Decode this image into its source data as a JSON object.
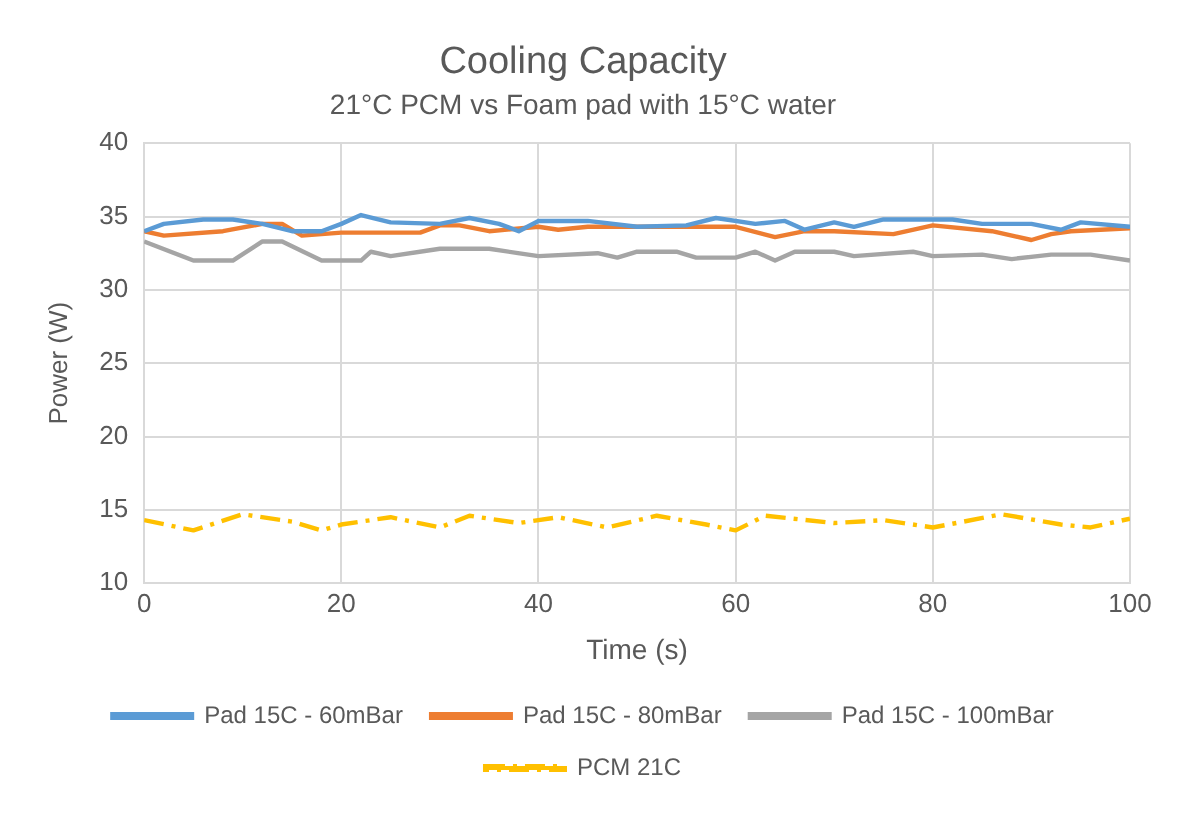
{
  "chart_data": {
    "type": "line",
    "title": "Cooling Capacity",
    "subtitle": "21°C PCM vs Foam pad with 15°C water",
    "xlabel": "Time (s)",
    "ylabel": "Power (W)",
    "xlim": [
      0,
      100
    ],
    "xticks": [
      0,
      20,
      40,
      60,
      80,
      100
    ],
    "ylim": [
      10,
      40
    ],
    "yticks": [
      10,
      15,
      20,
      25,
      30,
      35,
      40
    ],
    "grid": true,
    "legend": "bottom",
    "marker": "none",
    "series": [
      {
        "name": "Pad 15C - 60mBar",
        "color": "#5b9bd5",
        "line_style": "solid",
        "x": [
          0,
          2,
          6,
          9,
          12,
          15,
          18,
          20,
          22,
          25,
          30,
          33,
          36,
          38,
          40,
          45,
          50,
          55,
          58,
          62,
          65,
          67,
          70,
          72,
          75,
          82,
          85,
          90,
          93,
          95,
          100
        ],
        "values": [
          34,
          34.5,
          34.8,
          34.8,
          34.5,
          34,
          34,
          34.5,
          35.1,
          34.6,
          34.5,
          34.9,
          34.5,
          34,
          34.7,
          34.7,
          34.3,
          34.4,
          34.9,
          34.5,
          34.7,
          34.1,
          34.6,
          34.3,
          34.8,
          34.8,
          34.5,
          34.5,
          34.1,
          34.6,
          34.3
        ]
      },
      {
        "name": "Pad 15C - 80mBar",
        "color": "#ed7d31",
        "line_style": "solid",
        "x": [
          0,
          2,
          8,
          12,
          14,
          16,
          20,
          28,
          30,
          32,
          35,
          40,
          42,
          45,
          50,
          55,
          60,
          64,
          67,
          70,
          76,
          80,
          86,
          90,
          92,
          94,
          100
        ],
        "values": [
          34,
          33.7,
          34,
          34.5,
          34.5,
          33.7,
          33.9,
          33.9,
          34.4,
          34.4,
          34,
          34.3,
          34.1,
          34.3,
          34.3,
          34.3,
          34.3,
          33.6,
          34,
          34,
          33.8,
          34.4,
          34,
          33.4,
          33.8,
          34,
          34.2
        ]
      },
      {
        "name": "Pad 15C - 100mBar",
        "color": "#a5a5a5",
        "line_style": "solid",
        "x": [
          0,
          5,
          9,
          12,
          14,
          18,
          22,
          23,
          25,
          30,
          35,
          40,
          46,
          48,
          50,
          54,
          56,
          60,
          62,
          64,
          66,
          70,
          72,
          78,
          80,
          85,
          88,
          92,
          96,
          100
        ],
        "values": [
          33.3,
          32,
          32,
          33.3,
          33.3,
          32,
          32,
          32.6,
          32.3,
          32.8,
          32.8,
          32.3,
          32.5,
          32.2,
          32.6,
          32.6,
          32.2,
          32.2,
          32.6,
          32,
          32.6,
          32.6,
          32.3,
          32.6,
          32.3,
          32.4,
          32.1,
          32.4,
          32.4,
          32
        ]
      },
      {
        "name": "PCM 21C",
        "color": "#ffc000",
        "line_style": "dashed",
        "x": [
          0,
          5,
          10,
          15,
          18,
          20,
          25,
          30,
          33,
          38,
          42,
          47,
          52,
          57,
          60,
          63,
          70,
          75,
          80,
          87,
          93,
          96,
          100
        ],
        "values": [
          14.3,
          13.6,
          14.7,
          14.2,
          13.6,
          14,
          14.5,
          13.8,
          14.6,
          14.1,
          14.5,
          13.8,
          14.6,
          14,
          13.6,
          14.6,
          14.1,
          14.3,
          13.8,
          14.7,
          14,
          13.8,
          14.4
        ]
      }
    ]
  }
}
